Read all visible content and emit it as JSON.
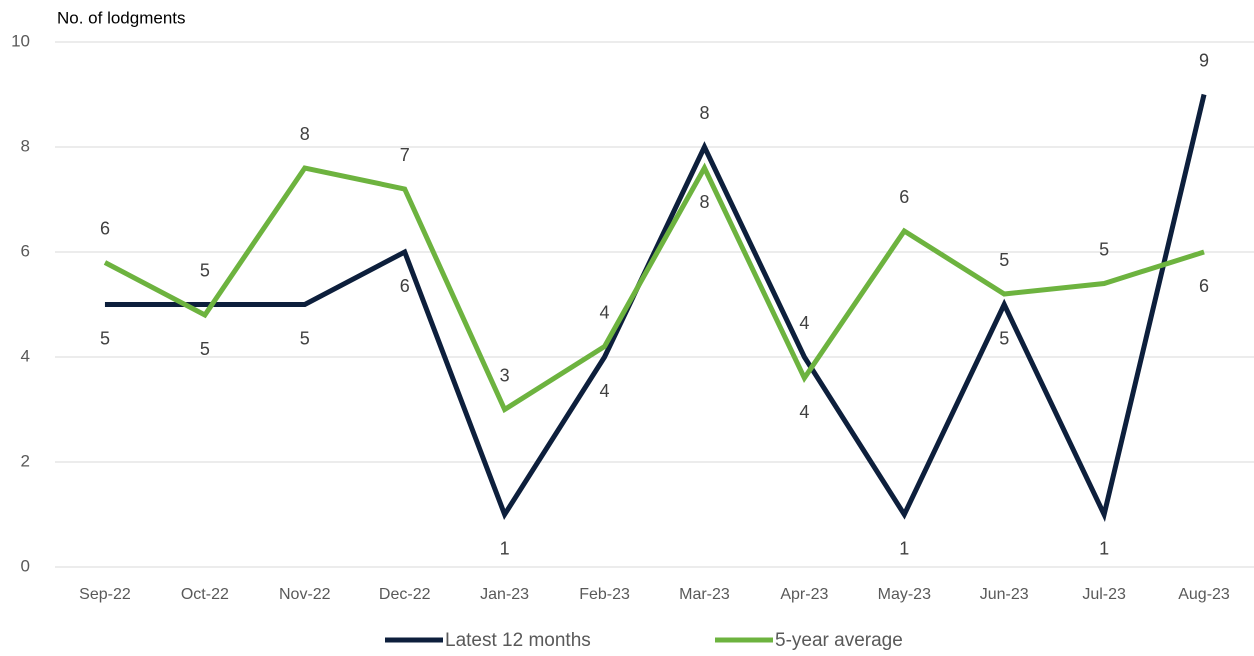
{
  "chart_data": {
    "type": "line",
    "y_label": "No. of lodgments",
    "categories": [
      "Sep-22",
      "Oct-22",
      "Nov-22",
      "Dec-22",
      "Jan-23",
      "Feb-23",
      "Mar-23",
      "Apr-23",
      "May-23",
      "Jun-23",
      "Jul-23",
      "Aug-23"
    ],
    "series": [
      {
        "name": "Latest 12 months",
        "color": "#0d1f3c",
        "values": [
          5,
          5,
          5,
          6,
          1,
          4,
          8,
          4,
          1,
          5,
          1,
          9
        ]
      },
      {
        "name": "5-year average",
        "color": "#6db33f",
        "values": [
          5.8,
          4.8,
          7.6,
          7.2,
          3.0,
          4.2,
          7.6,
          3.6,
          6.4,
          5.2,
          5.4,
          6.0
        ],
        "value_labels": [
          "6",
          "5",
          "8",
          "7",
          "3",
          "4",
          "8",
          "4",
          "6",
          "5",
          "5",
          "6"
        ]
      }
    ],
    "ylim": [
      0,
      10
    ],
    "yticks": [
      0,
      2,
      4,
      6,
      8,
      10
    ],
    "grid": true,
    "legend": "bottom"
  }
}
